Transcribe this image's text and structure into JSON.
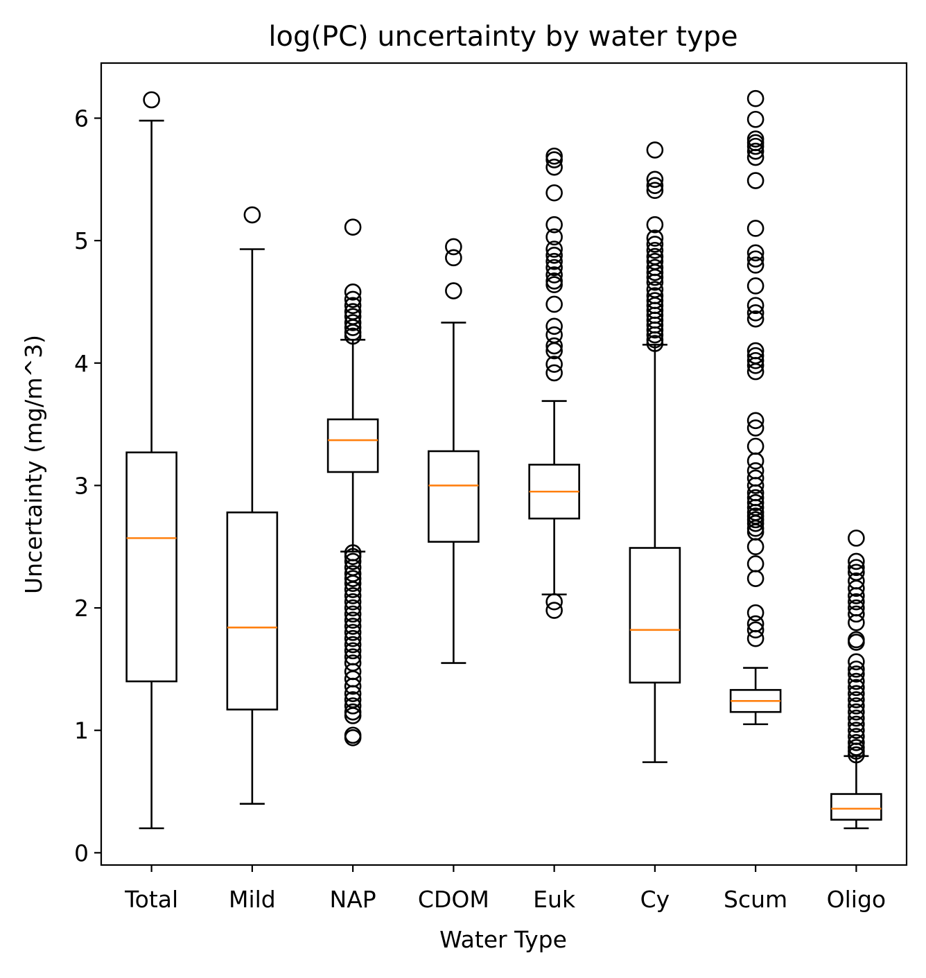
{
  "chart_data": {
    "type": "box",
    "title": "log(PC) uncertainty by water type",
    "xlabel": "Water Type",
    "ylabel": "Uncertainty (mg/m^3)",
    "ylim": [
      -0.1,
      6.45
    ],
    "yticks": [
      0,
      1,
      2,
      3,
      4,
      5,
      6
    ],
    "grid": false,
    "colors": {
      "box": "#000000",
      "median": "#ff7f0e",
      "outlier": "#000000"
    },
    "categories": [
      "Total",
      "Mild",
      "NAP",
      "CDOM",
      "Euk",
      "Cy",
      "Scum",
      "Oligo"
    ],
    "boxes": [
      {
        "label": "Total",
        "whisker_low": 0.2,
        "q1": 1.4,
        "median": 2.57,
        "q3": 3.27,
        "whisker_high": 5.98,
        "outliers": [
          6.15
        ]
      },
      {
        "label": "Mild",
        "whisker_low": 0.4,
        "q1": 1.17,
        "median": 1.84,
        "q3": 2.78,
        "whisker_high": 4.93,
        "outliers": [
          5.21
        ]
      },
      {
        "label": "NAP",
        "whisker_low": 2.46,
        "q1": 3.11,
        "median": 3.37,
        "q3": 3.54,
        "whisker_high": 4.19,
        "outliers": [
          5.11,
          4.58,
          4.52,
          4.47,
          4.42,
          4.38,
          4.33,
          4.29,
          4.25,
          4.22,
          2.45,
          2.42,
          2.38,
          2.33,
          2.28,
          2.24,
          2.2,
          2.15,
          2.1,
          2.05,
          2.0,
          1.95,
          1.9,
          1.85,
          1.8,
          1.75,
          1.7,
          1.65,
          1.6,
          1.55,
          1.48,
          1.42,
          1.36,
          1.3,
          1.25,
          1.2,
          1.15,
          1.12,
          0.96,
          0.94
        ]
      },
      {
        "label": "CDOM",
        "whisker_low": 1.55,
        "q1": 2.54,
        "median": 3.0,
        "q3": 3.28,
        "whisker_high": 4.33,
        "outliers": [
          4.95,
          4.86,
          4.59
        ]
      },
      {
        "label": "Euk",
        "whisker_low": 2.11,
        "q1": 2.73,
        "median": 2.95,
        "q3": 3.17,
        "whisker_high": 3.69,
        "outliers": [
          5.69,
          5.66,
          5.6,
          5.39,
          5.13,
          5.03,
          4.93,
          4.88,
          4.83,
          4.78,
          4.72,
          4.67,
          4.64,
          4.48,
          4.3,
          4.23,
          4.14,
          4.1,
          3.99,
          3.92,
          2.05,
          1.98
        ]
      },
      {
        "label": "Cy",
        "whisker_low": 0.74,
        "q1": 1.39,
        "median": 1.82,
        "q3": 2.49,
        "whisker_high": 4.15,
        "outliers": [
          5.74,
          5.5,
          5.45,
          5.41,
          5.13,
          5.02,
          4.97,
          4.92,
          4.87,
          4.83,
          4.78,
          4.74,
          4.7,
          4.66,
          4.6,
          4.55,
          4.51,
          4.47,
          4.43,
          4.39,
          4.35,
          4.31,
          4.27,
          4.23,
          4.19,
          4.16
        ]
      },
      {
        "label": "Scum",
        "whisker_low": 1.05,
        "q1": 1.15,
        "median": 1.24,
        "q3": 1.33,
        "whisker_high": 1.51,
        "outliers": [
          6.16,
          5.99,
          5.83,
          5.8,
          5.77,
          5.73,
          5.68,
          5.49,
          5.1,
          4.9,
          4.85,
          4.8,
          4.63,
          4.47,
          4.41,
          4.36,
          4.1,
          4.06,
          4.02,
          3.98,
          3.93,
          3.53,
          3.47,
          3.32,
          3.2,
          3.12,
          3.06,
          3.0,
          2.94,
          2.9,
          2.86,
          2.82,
          2.78,
          2.75,
          2.72,
          2.69,
          2.65,
          2.62,
          2.5,
          2.36,
          2.24,
          1.96,
          1.87,
          1.82,
          1.75
        ]
      },
      {
        "label": "Oligo",
        "whisker_low": 0.2,
        "q1": 0.27,
        "median": 0.36,
        "q3": 0.48,
        "whisker_high": 0.79,
        "outliers": [
          2.57,
          2.38,
          2.33,
          2.29,
          2.22,
          2.16,
          2.1,
          2.05,
          2.0,
          1.95,
          1.88,
          1.74,
          1.72,
          1.56,
          1.5,
          1.46,
          1.4,
          1.35,
          1.3,
          1.25,
          1.2,
          1.15,
          1.1,
          1.05,
          1.0,
          0.95,
          0.9,
          0.86,
          0.83,
          0.8
        ]
      }
    ]
  }
}
